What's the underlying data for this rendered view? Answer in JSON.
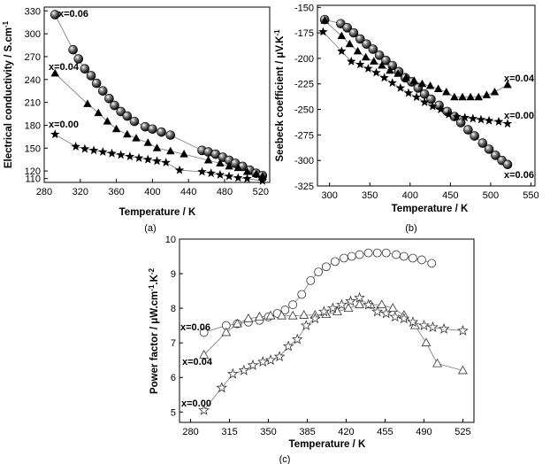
{
  "chart_data": [
    {
      "type": "scatter",
      "panel": "(a)",
      "xlabel": "Temperature / K",
      "ylabel": "Electrical conductivity / S.cm",
      "ylabel_sup": "-1",
      "xlim": [
        280,
        530
      ],
      "ylim": [
        105,
        335
      ],
      "xticks": [
        280,
        320,
        360,
        400,
        440,
        480,
        520
      ],
      "yticks": [
        110,
        120,
        150,
        180,
        210,
        240,
        270,
        300,
        330
      ],
      "series": [
        {
          "name": "x=0.06",
          "marker": "sphere",
          "x": [
            292,
            312,
            318,
            325,
            332,
            338,
            345,
            352,
            358,
            365,
            372,
            380,
            392,
            400,
            410,
            420,
            455,
            462,
            470,
            478,
            485,
            492,
            500,
            508,
            515,
            522
          ],
          "y": [
            325,
            279,
            267,
            254,
            245,
            235,
            225,
            215,
            206,
            198,
            192,
            185,
            178,
            175,
            171,
            167,
            147,
            145,
            142,
            138,
            134,
            130,
            126,
            121,
            117,
            114
          ]
        },
        {
          "name": "x=0.04",
          "marker": "triangle",
          "x": [
            292,
            328,
            340,
            350,
            360,
            372,
            382,
            395,
            405,
            420,
            435,
            462,
            475,
            485,
            495,
            505,
            515,
            522
          ],
          "y": [
            248,
            208,
            196,
            185,
            175,
            168,
            163,
            157,
            150,
            146,
            142,
            134,
            130,
            126,
            124,
            119,
            116,
            113
          ]
        },
        {
          "name": "x=0.00",
          "marker": "star",
          "x": [
            292,
            315,
            325,
            335,
            345,
            355,
            365,
            375,
            385,
            395,
            405,
            415,
            430,
            455,
            465,
            475,
            485,
            495,
            505,
            522
          ],
          "y": [
            168,
            152,
            149,
            147,
            145,
            143,
            141,
            139,
            137,
            135,
            133,
            131,
            121,
            119,
            117,
            115,
            113,
            111,
            110,
            107
          ]
        }
      ]
    },
    {
      "type": "scatter",
      "panel": "(b)",
      "xlabel": "Temperature / K",
      "ylabel": "Seebeck coefficient / μV.K",
      "ylabel_sup": "-1",
      "xlim": [
        285,
        555
      ],
      "ylim": [
        -325,
        -148
      ],
      "xticks": [
        300,
        350,
        400,
        450,
        500,
        550
      ],
      "yticks": [
        -150,
        -175,
        -200,
        -225,
        -250,
        -275,
        -300,
        -325
      ],
      "series": [
        {
          "name": "x=0.06",
          "marker": "sphere",
          "x": [
            294,
            314,
            322,
            330,
            338,
            346,
            354,
            362,
            370,
            378,
            386,
            394,
            402,
            410,
            418,
            426,
            436,
            446,
            455,
            463,
            472,
            480,
            490,
            498,
            506,
            514,
            521
          ],
          "y": [
            -162,
            -166,
            -170,
            -175,
            -181,
            -186,
            -191,
            -197,
            -202,
            -207,
            -213,
            -219,
            -223,
            -229,
            -235,
            -240,
            -246,
            -252,
            -257,
            -263,
            -270,
            -276,
            -283,
            -289,
            -295,
            -300,
            -304
          ]
        },
        {
          "name": "x=0.04",
          "marker": "triangle",
          "x": [
            294,
            315,
            325,
            335,
            345,
            355,
            365,
            375,
            385,
            395,
            405,
            415,
            425,
            435,
            445,
            455,
            465,
            475,
            485,
            495,
            505,
            521
          ],
          "y": [
            -163,
            -178,
            -186,
            -193,
            -199,
            -203,
            -207,
            -212,
            -215,
            -219,
            -222,
            -225,
            -227,
            -230,
            -233,
            -238,
            -238,
            -238,
            -238,
            -236,
            -233,
            -226
          ]
        },
        {
          "name": "x=0.00",
          "marker": "star",
          "x": [
            292,
            315,
            327,
            338,
            348,
            358,
            368,
            378,
            388,
            398,
            408,
            418,
            428,
            438,
            448,
            458,
            468,
            478,
            488,
            498,
            510,
            521
          ],
          "y": [
            -174,
            -193,
            -203,
            -206,
            -210,
            -214,
            -219,
            -224,
            -229,
            -234,
            -238,
            -243,
            -247,
            -250,
            -255,
            -257,
            -258,
            -259,
            -260,
            -261,
            -262,
            -264
          ]
        }
      ]
    },
    {
      "type": "scatter",
      "panel": "(c)",
      "xlabel": "Temperature / K",
      "ylabel": "Power factor / μW.cm",
      "ylabel_sup1": "-1",
      "ylabel_mid": ".K",
      "ylabel_sup2": "-2",
      "xlim": [
        270,
        535
      ],
      "ylim": [
        4.7,
        10
      ],
      "xticks": [
        280,
        315,
        350,
        385,
        420,
        455,
        490,
        525
      ],
      "yticks": [
        5,
        6,
        7,
        8,
        9,
        10
      ],
      "series": [
        {
          "name": "x=0.06",
          "marker": "circle-open",
          "x": [
            292,
            312,
            322,
            332,
            342,
            350,
            358,
            365,
            372,
            380,
            388,
            395,
            402,
            410,
            418,
            425,
            432,
            440,
            448,
            456,
            465,
            472,
            480,
            488,
            497
          ],
          "y": [
            7.3,
            7.5,
            7.55,
            7.6,
            7.65,
            7.75,
            7.85,
            7.95,
            8.1,
            8.4,
            8.8,
            9.05,
            9.2,
            9.35,
            9.45,
            9.5,
            9.55,
            9.6,
            9.6,
            9.6,
            9.55,
            9.5,
            9.45,
            9.4,
            9.3
          ]
        },
        {
          "name": "x=0.04",
          "marker": "triangle-open",
          "x": [
            292,
            312,
            322,
            332,
            342,
            352,
            362,
            372,
            382,
            392,
            402,
            412,
            422,
            432,
            442,
            452,
            462,
            472,
            482,
            492,
            502,
            525
          ],
          "y": [
            6.65,
            7.3,
            7.55,
            7.7,
            7.75,
            7.78,
            7.78,
            7.78,
            7.8,
            7.8,
            7.82,
            7.9,
            8.0,
            8.1,
            8.1,
            8.1,
            8.0,
            7.8,
            7.5,
            7.0,
            6.4,
            6.2
          ]
        },
        {
          "name": "x=0.00",
          "marker": "star-open",
          "x": [
            292,
            308,
            318,
            328,
            336,
            345,
            352,
            360,
            368,
            376,
            384,
            392,
            400,
            408,
            416,
            424,
            432,
            440,
            448,
            456,
            464,
            472,
            480,
            490,
            498,
            508,
            525
          ],
          "y": [
            5.05,
            5.7,
            6.1,
            6.2,
            6.35,
            6.45,
            6.5,
            6.6,
            6.9,
            7.1,
            7.5,
            7.7,
            7.9,
            8.0,
            8.1,
            8.2,
            8.3,
            8.1,
            7.9,
            7.85,
            7.75,
            7.7,
            7.6,
            7.5,
            7.45,
            7.4,
            7.35
          ]
        }
      ]
    }
  ]
}
